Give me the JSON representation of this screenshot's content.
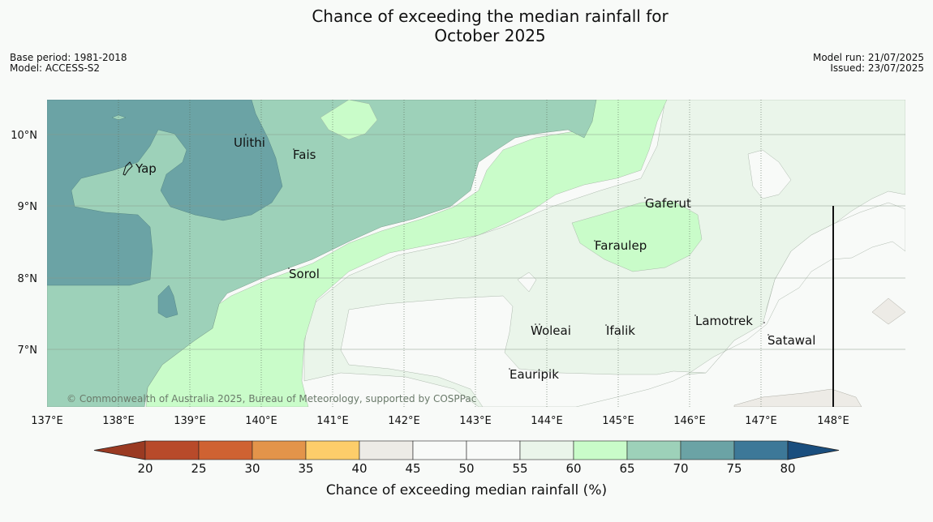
{
  "title": [
    "Chance of exceeding the median rainfall for",
    "October 2025"
  ],
  "meta_left": [
    "Base period: 1981-2018",
    "Model: ACCESS-S2"
  ],
  "meta_right": [
    "Model run: 21/07/2025",
    "Issued: 23/07/2025"
  ],
  "copyright": "© Commonwealth of Australia 2025, Bureau of Meteorology, supported by COSPPac",
  "lat_labels": [
    "10°N",
    "9°N",
    "8°N",
    "7°N"
  ],
  "lon_labels": [
    "137°E",
    "138°E",
    "139°E",
    "140°E",
    "141°E",
    "142°E",
    "143°E",
    "144°E",
    "145°E",
    "146°E",
    "147°E",
    "148°E"
  ],
  "places": [
    "Ulithi",
    "Fais",
    "Yap",
    "Gaferut",
    "Faraulep",
    "Sorol",
    "Woleai",
    "Ifalik",
    "Lamotrek",
    "Satawal",
    "Eauripik"
  ],
  "colorbar": {
    "title": "Chance of exceeding median rainfall (%)",
    "ticks": [
      "20",
      "25",
      "30",
      "35",
      "40",
      "45",
      "50",
      "55",
      "60",
      "65",
      "70",
      "75",
      "80"
    ],
    "colors": [
      "#9a3a22",
      "#b84a2a",
      "#cf6232",
      "#e3944a",
      "#fdcd6a",
      "#edebe6",
      "#f8faf8",
      "#f8faf8",
      "#eaf5ea",
      "#c9fcc9",
      "#9dd1b9",
      "#6ba3a5",
      "#3d7898",
      "#1a4e7e"
    ]
  }
}
